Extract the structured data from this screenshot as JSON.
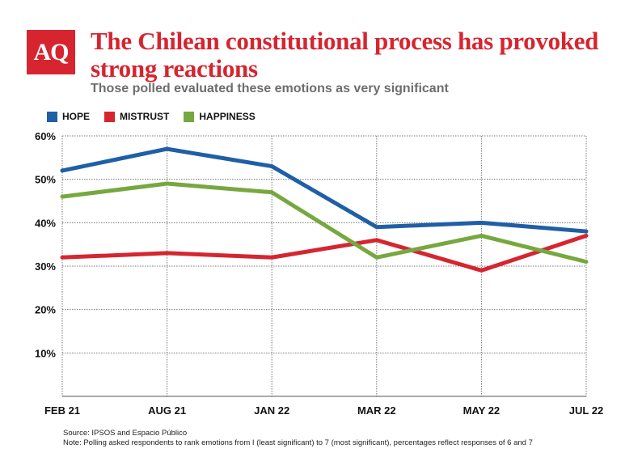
{
  "logo_text": "AQ",
  "title": "The Chilean constitutional process has provoked strong reactions",
  "subtitle": "Those polled evaluated these emotions as very significant",
  "chart_data": {
    "type": "line",
    "x": [
      "FEB 21",
      "AUG 21",
      "JAN 22",
      "MAR 22",
      "MAY 22",
      "JUL 22"
    ],
    "y_ticks": [
      "10%",
      "20%",
      "30%",
      "40%",
      "50%",
      "60%"
    ],
    "y_tick_values": [
      10,
      20,
      30,
      40,
      50,
      60
    ],
    "ylim": [
      0,
      60
    ],
    "grid": true,
    "legend_position": "top-left",
    "series": [
      {
        "name": "HOPE",
        "color": "#1f5fa6",
        "values": [
          52,
          57,
          53,
          39,
          40,
          38
        ]
      },
      {
        "name": "MISTRUST",
        "color": "#d6252f",
        "values": [
          32,
          33,
          32,
          36,
          29,
          37
        ]
      },
      {
        "name": "HAPPINESS",
        "color": "#76a83f",
        "values": [
          46,
          49,
          47,
          32,
          37,
          31
        ]
      }
    ]
  },
  "source": "Source: IPSOS and Espacio Público",
  "note": "Note: Polling asked respondents to rank emotions from I (least significant) to 7 (most significant), percentages reflect responses of 6 and 7"
}
